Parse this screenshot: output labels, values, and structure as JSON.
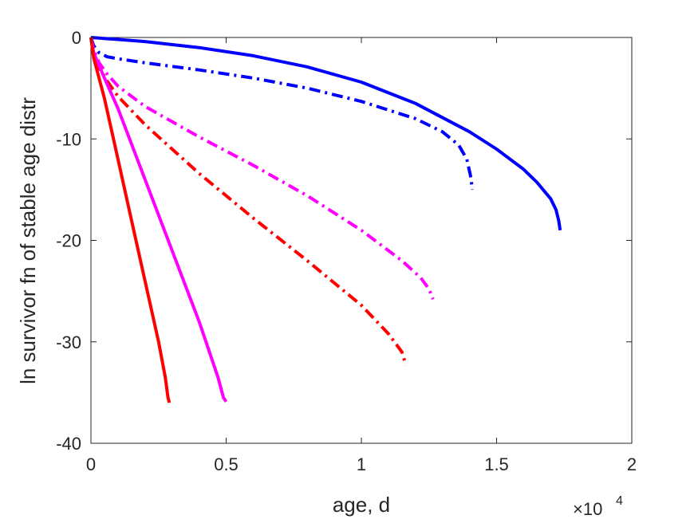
{
  "chart_data": {
    "type": "line",
    "title": "",
    "xlabel": "age, d",
    "ylabel": "ln survivor fn of stable age distr",
    "x_multiplier_label": "×10",
    "x_multiplier_exponent": "4",
    "xlim": [
      0,
      20000
    ],
    "ylim": [
      -40,
      0
    ],
    "xticks": [
      0,
      5000,
      10000,
      15000,
      20000
    ],
    "xtick_labels": [
      "0",
      "0.5",
      "1",
      "1.5",
      "2"
    ],
    "yticks": [
      0,
      -10,
      -20,
      -30,
      -40
    ],
    "ytick_labels": [
      "0",
      "-10",
      "-20",
      "-30",
      "-40"
    ],
    "grid": false,
    "legend": "none",
    "series": [
      {
        "color": "#0000ff",
        "style": "solid",
        "x": [
          0,
          1000,
          2000,
          4000,
          6000,
          8000,
          10000,
          12000,
          14000,
          15000,
          16000,
          16500,
          17000,
          17200,
          17300,
          17350
        ],
        "y": [
          0,
          -0.2,
          -0.4,
          -1.0,
          -1.8,
          -2.9,
          -4.4,
          -6.5,
          -9.3,
          -11.0,
          -13.0,
          -14.3,
          -15.9,
          -17.0,
          -18.1,
          -19.0
        ]
      },
      {
        "color": "#0000ff",
        "style": "dashdot",
        "x": [
          0,
          100,
          300,
          600,
          1000,
          2000,
          4000,
          6000,
          8000,
          10000,
          12000,
          13000,
          13600,
          13900,
          14050,
          14100
        ],
        "y": [
          0,
          -0.8,
          -1.5,
          -1.9,
          -2.1,
          -2.5,
          -3.2,
          -4.0,
          -5.0,
          -6.3,
          -8.0,
          -9.3,
          -10.6,
          -12.0,
          -13.8,
          -15.0
        ]
      },
      {
        "color": "#ff00ff",
        "style": "dashdot",
        "x": [
          0,
          100,
          300,
          600,
          1000,
          2000,
          4000,
          6000,
          8000,
          10000,
          11500,
          12200,
          12500,
          12650
        ],
        "y": [
          0,
          -1.2,
          -2.5,
          -3.6,
          -4.8,
          -6.8,
          -9.8,
          -12.6,
          -15.6,
          -19.0,
          -22.0,
          -23.7,
          -24.8,
          -25.8
        ]
      },
      {
        "color": "#ff0000",
        "style": "dashdot",
        "x": [
          0,
          100,
          300,
          600,
          1000,
          2000,
          4000,
          6000,
          8000,
          10000,
          11000,
          11500,
          11650
        ],
        "y": [
          0,
          -1.6,
          -3.0,
          -4.3,
          -5.8,
          -8.6,
          -13.4,
          -17.8,
          -22.0,
          -26.4,
          -29.2,
          -31.0,
          -32.3
        ]
      },
      {
        "color": "#ff00ff",
        "style": "solid",
        "x": [
          0,
          100,
          500,
          1000,
          2000,
          3000,
          4000,
          4700,
          4900,
          5000
        ],
        "y": [
          0,
          -1.5,
          -4.0,
          -7.0,
          -14.0,
          -21.0,
          -28.0,
          -33.5,
          -35.5,
          -35.9
        ]
      },
      {
        "color": "#ff0000",
        "style": "solid",
        "x": [
          0,
          100,
          500,
          1000,
          1500,
          2000,
          2500,
          2750,
          2850,
          2900
        ],
        "y": [
          0,
          -2.0,
          -6.0,
          -12.0,
          -18.0,
          -24.0,
          -30.0,
          -33.5,
          -35.5,
          -36.0
        ]
      }
    ]
  }
}
